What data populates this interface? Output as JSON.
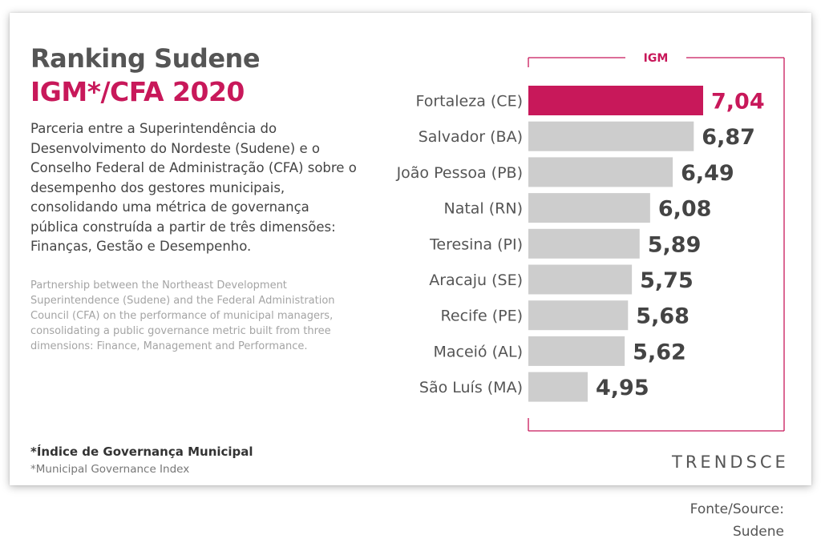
{
  "header": {
    "title": "Ranking Sudene",
    "subtitle": "IGM*/CFA 2020"
  },
  "description": {
    "pt": "Parceria entre a Superintendência do Desenvolvimento do Nordeste (Sudene) e o Conselho Federal de Administração (CFA) sobre o desempenho dos gestores municipais, consolidando uma métrica de governança pública construída a partir de três dimensões: Finanças, Gestão e Desempenho.",
    "en": "Partnership between the Northeast Development Superintendence (Sudene) and the Federal Administration Council (CFA) on the performance of municipal managers, consolidating a public governance metric built from three dimensions: Finance, Management and Performance."
  },
  "footnote": {
    "pt": "*Índice de Governança Municipal",
    "en": "*Municipal Governance Index"
  },
  "brand": "TRENDSCE",
  "source": {
    "line1": "Fonte/Source:",
    "line2": "Sudene"
  },
  "colors": {
    "highlight": "#c8185a",
    "bar": "#cdcdcd",
    "value_text": "#444444",
    "label_text": "#555555"
  },
  "chart_data": {
    "type": "bar",
    "orientation": "horizontal",
    "legend_title": "IGM",
    "categories": [
      "Fortaleza (CE)",
      "Salvador (BA)",
      "João Pessoa (PB)",
      "Natal (RN)",
      "Teresina (PI)",
      "Aracaju (SE)",
      "Recife (PE)",
      "Maceió (AL)",
      "São Luís (MA)"
    ],
    "values": [
      7.04,
      6.87,
      6.49,
      6.08,
      5.89,
      5.75,
      5.68,
      5.62,
      4.95
    ],
    "value_labels": [
      "7,04",
      "6,87",
      "6,49",
      "6,08",
      "5,89",
      "5,75",
      "5,68",
      "5,62",
      "4,95"
    ],
    "highlight_index": 0,
    "grid": false
  }
}
